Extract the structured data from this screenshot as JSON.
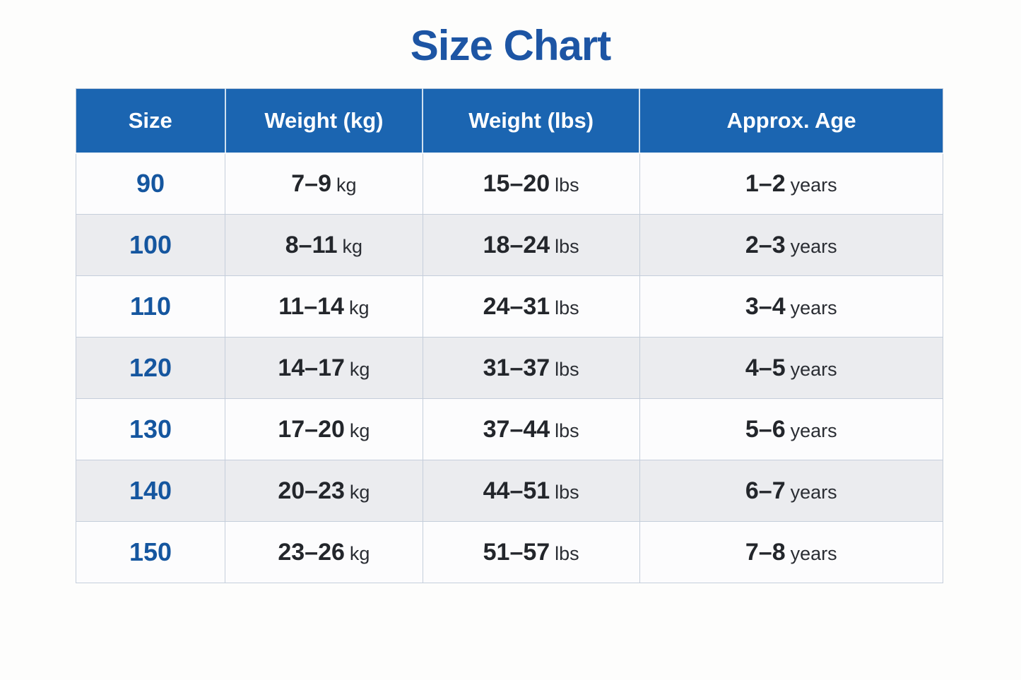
{
  "page": {
    "title": "Size Chart"
  },
  "colors": {
    "title_color": "#1d55a4",
    "header_bg": "#1b65b1",
    "header_text": "#ffffff",
    "size_color": "#15569f",
    "value_color": "#23262b",
    "row_alt_bg": "#ebecef",
    "grid_line": "#c5cedb"
  },
  "chart_data": {
    "type": "table",
    "title": "Size Chart",
    "columns": [
      "Size",
      "Weight (kg)",
      "Weight (lbs)",
      "Approx. Age"
    ],
    "units": {
      "kg": "kg",
      "lbs": "lbs",
      "age": "years"
    },
    "rows": [
      {
        "size": "90",
        "weight_kg": "7–9",
        "weight_lbs": "15–20",
        "age_years": "1–2"
      },
      {
        "size": "100",
        "weight_kg": "8–11",
        "weight_lbs": "18–24",
        "age_years": "2–3"
      },
      {
        "size": "110",
        "weight_kg": "11–14",
        "weight_lbs": "24–31",
        "age_years": "3–4"
      },
      {
        "size": "120",
        "weight_kg": "14–17",
        "weight_lbs": "31–37",
        "age_years": "4–5"
      },
      {
        "size": "130",
        "weight_kg": "17–20",
        "weight_lbs": "37–44",
        "age_years": "5–6"
      },
      {
        "size": "140",
        "weight_kg": "20–23",
        "weight_lbs": "44–51",
        "age_years": "6–7"
      },
      {
        "size": "150",
        "weight_kg": "23–26",
        "weight_lbs": "51–57",
        "age_years": "7–8"
      }
    ]
  }
}
